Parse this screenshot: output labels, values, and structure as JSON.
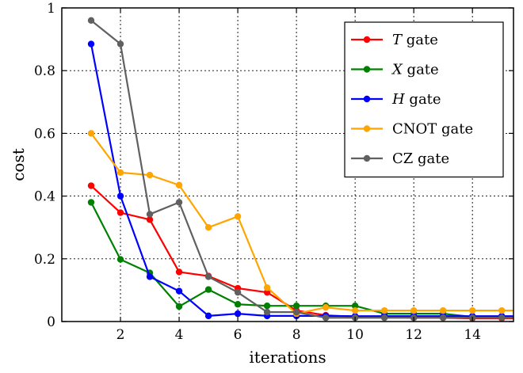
{
  "chart_data": {
    "type": "line",
    "title": "",
    "xlabel": "iterations",
    "ylabel": "cost",
    "xlim": [
      0.0,
      15.4
    ],
    "ylim": [
      0,
      1
    ],
    "xticks": [
      2,
      4,
      6,
      8,
      10,
      12,
      14
    ],
    "yticks": [
      0,
      0.2,
      0.4,
      0.6,
      0.8,
      1
    ],
    "ytick_labels": [
      "0",
      "0.2",
      "0.4",
      "0.6",
      "0.8",
      "1"
    ],
    "grid": true,
    "grid_style": "dotted",
    "legend_position": "top-right",
    "x": [
      1,
      2,
      3,
      4,
      5,
      6,
      7,
      8,
      9,
      10,
      11,
      12,
      13,
      14,
      15,
      16
    ],
    "series": [
      {
        "name": "T gate",
        "name_italic": "T",
        "name_rest": " gate",
        "color": "#ff0000",
        "values": [
          0.433,
          0.347,
          0.325,
          0.158,
          0.145,
          0.106,
          0.093,
          0.035,
          0.02,
          0.015,
          0.015,
          0.012,
          0.012,
          0.01,
          0.01,
          0.01
        ]
      },
      {
        "name": "X gate",
        "name_italic": "X",
        "name_rest": " gate",
        "color": "#008000",
        "values": [
          0.38,
          0.198,
          0.155,
          0.048,
          0.102,
          0.055,
          0.05,
          0.05,
          0.05,
          0.05,
          0.025,
          0.025,
          0.025,
          0.015,
          0.015,
          0.015
        ]
      },
      {
        "name": "H gate",
        "name_italic": "H",
        "name_rest": " gate",
        "color": "#0000ff",
        "values": [
          0.885,
          0.4,
          0.143,
          0.097,
          0.018,
          0.025,
          0.018,
          0.018,
          0.018,
          0.017,
          0.017,
          0.017,
          0.017,
          0.017,
          0.017,
          0.017
        ]
      },
      {
        "name": "CNOT gate",
        "name_italic": "",
        "name_rest": "CNOT gate",
        "color": "#ffa500",
        "values": [
          0.6,
          0.475,
          0.467,
          0.435,
          0.3,
          0.335,
          0.108,
          0.025,
          0.045,
          0.035,
          0.035,
          0.035,
          0.035,
          0.035,
          0.035,
          0.035
        ]
      },
      {
        "name": "CZ gate",
        "name_italic": "",
        "name_rest": "CZ gate",
        "color": "#606060",
        "values": [
          0.96,
          0.885,
          0.342,
          0.38,
          0.143,
          0.093,
          0.03,
          0.03,
          0.012,
          0.012,
          0.012,
          0.012,
          0.012,
          0.012,
          0.012,
          0.012
        ]
      }
    ]
  }
}
